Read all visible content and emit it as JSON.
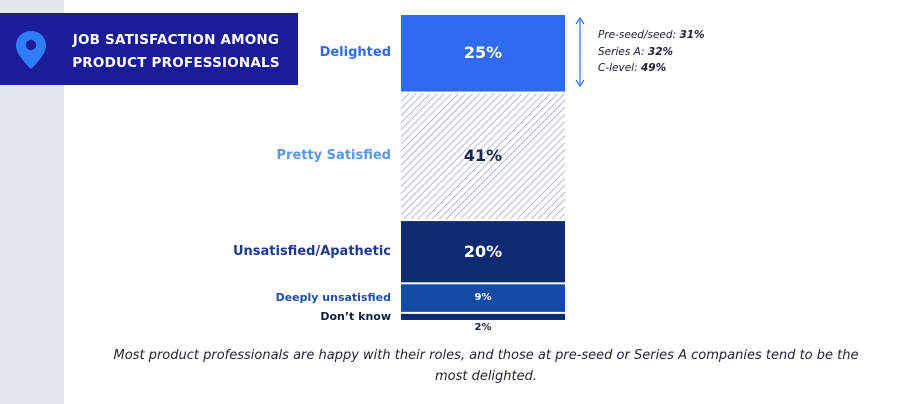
{
  "title": {
    "line1": "JOB SATISFACTION AMONG",
    "line2": "PRODUCT PROFESSIONALS"
  },
  "chart_data": {
    "type": "bar",
    "layout": "single stacked column",
    "categories": [
      "Delighted",
      "Pretty Satisfied",
      "Unsatisfied/Apathetic",
      "Deeply unsatisfied",
      "Don’t know"
    ],
    "values": [
      25,
      41,
      20,
      9,
      2
    ],
    "value_labels": [
      "25%",
      "41%",
      "20%",
      "9%",
      "2%"
    ],
    "colors": [
      "#2f6bf0",
      "#ffffff",
      "#0e2a72",
      "#1549a6",
      "#0e2a72"
    ],
    "label_colors": [
      "#2f6bf0",
      "#5d95e8",
      "#1e3a8a",
      "#1e4ea8",
      "#0f1f4a"
    ],
    "hatched": [
      false,
      true,
      false,
      false,
      false
    ],
    "annotation": {
      "applies_to": "Delighted",
      "rows": [
        {
          "label": "Pre-seed/seed:",
          "value": "31%"
        },
        {
          "label": "Series A:",
          "value": "32%"
        },
        {
          "label": "C-level:",
          "value": "49%"
        }
      ]
    }
  },
  "caption": "Most product professionals are happy with their roles, and those at pre-seed or Series A companies tend to be the most delighted."
}
